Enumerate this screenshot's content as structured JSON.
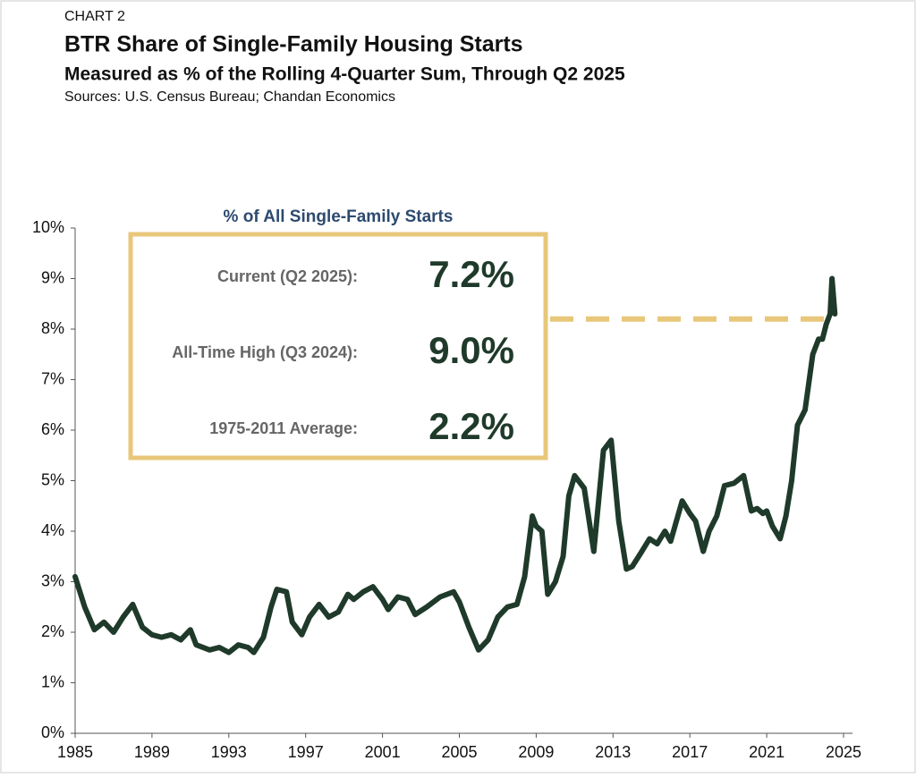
{
  "chart_data": {
    "type": "line",
    "label": "CHART 2",
    "title": "BTR Share of Single-Family Housing Starts",
    "subtitle": "Measured as % of the Rolling 4-Quarter Sum, Through Q2 2025",
    "source": "Sources: U.S. Census Bureau; Chandan Economics",
    "callout": {
      "title": "% of All Single-Family Starts",
      "rows": [
        {
          "label": "Current (Q2 2025):",
          "value": "7.2%"
        },
        {
          "label": "All-Time High (Q3 2024):",
          "value": "9.0%"
        },
        {
          "label": "1975-2011 Average:",
          "value": "2.2%"
        }
      ]
    },
    "reference_line": 8.2,
    "reference_color": "#e8c77a",
    "x": [
      1985.0,
      1985.5,
      1986.0,
      1986.5,
      1987.0,
      1987.5,
      1988.0,
      1988.5,
      1989.0,
      1989.5,
      1990.0,
      1990.5,
      1991.0,
      1991.3,
      1992.0,
      1992.5,
      1993.0,
      1993.5,
      1994.0,
      1994.3,
      1994.8,
      1995.2,
      1995.5,
      1996.0,
      1996.3,
      1996.8,
      1997.2,
      1997.7,
      1998.2,
      1998.7,
      1999.2,
      1999.5,
      2000.0,
      2000.5,
      2001.0,
      2001.3,
      2001.8,
      2002.3,
      2002.7,
      2003.3,
      2004.0,
      2004.7,
      2005.0,
      2005.5,
      2006.0,
      2006.5,
      2007.0,
      2007.5,
      2008.0,
      2008.4,
      2008.8,
      2009.0,
      2009.3,
      2009.6,
      2010.0,
      2010.4,
      2010.7,
      2011.0,
      2011.5,
      2012.0,
      2012.5,
      2012.9,
      2013.3,
      2013.7,
      2014.0,
      2014.5,
      2014.9,
      2015.3,
      2015.7,
      2016.0,
      2016.6,
      2017.0,
      2017.3,
      2017.7,
      2018.0,
      2018.4,
      2018.8,
      2019.3,
      2019.8,
      2020.2,
      2020.5,
      2020.8,
      2021.0,
      2021.3,
      2021.7,
      2022.0,
      2022.3,
      2022.6,
      2023.0,
      2023.4,
      2023.7,
      2023.9,
      2024.1,
      2024.3,
      2024.4,
      2024.55
    ],
    "series": [
      {
        "color": "#1f3a2a",
        "values": [
          3.1,
          2.5,
          2.05,
          2.2,
          2.0,
          2.3,
          2.55,
          2.1,
          1.95,
          1.9,
          1.95,
          1.85,
          2.05,
          1.75,
          1.65,
          1.7,
          1.6,
          1.75,
          1.7,
          1.6,
          1.9,
          2.5,
          2.85,
          2.8,
          2.2,
          1.95,
          2.3,
          2.55,
          2.3,
          2.4,
          2.75,
          2.65,
          2.8,
          2.9,
          2.65,
          2.45,
          2.7,
          2.65,
          2.35,
          2.5,
          2.7,
          2.8,
          2.6,
          2.1,
          1.65,
          1.85,
          2.3,
          2.5,
          2.55,
          3.1,
          4.3,
          4.1,
          4.0,
          2.75,
          3.0,
          3.5,
          4.7,
          5.1,
          4.85,
          3.6,
          5.6,
          5.8,
          4.2,
          3.25,
          3.3,
          3.6,
          3.85,
          3.75,
          4.0,
          3.8,
          4.6,
          4.35,
          4.2,
          3.6,
          4.0,
          4.3,
          4.9,
          4.95,
          5.1,
          4.4,
          4.45,
          4.35,
          4.4,
          4.1,
          3.85,
          4.3,
          5.0,
          6.1,
          6.4,
          7.5,
          7.8,
          7.8,
          8.1,
          8.3,
          9.0,
          8.3
        ]
      }
    ],
    "xlim": [
      1985,
      2025
    ],
    "xticks": [
      1985,
      1989,
      1993,
      1997,
      2001,
      2005,
      2009,
      2013,
      2017,
      2021,
      2025
    ],
    "ylim": [
      0,
      10
    ],
    "yticks": [
      {
        "value": 0,
        "label": "0%"
      },
      {
        "value": 1,
        "label": "1%"
      },
      {
        "value": 2,
        "label": "2%"
      },
      {
        "value": 3,
        "label": "3%"
      },
      {
        "value": 4,
        "label": "4%"
      },
      {
        "value": 5,
        "label": "5%"
      },
      {
        "value": 6,
        "label": "6%"
      },
      {
        "value": 7,
        "label": "7%"
      },
      {
        "value": 8,
        "label": "8%"
      },
      {
        "value": 9,
        "label": "9%"
      },
      {
        "value": 10,
        "label": "10%"
      }
    ]
  }
}
